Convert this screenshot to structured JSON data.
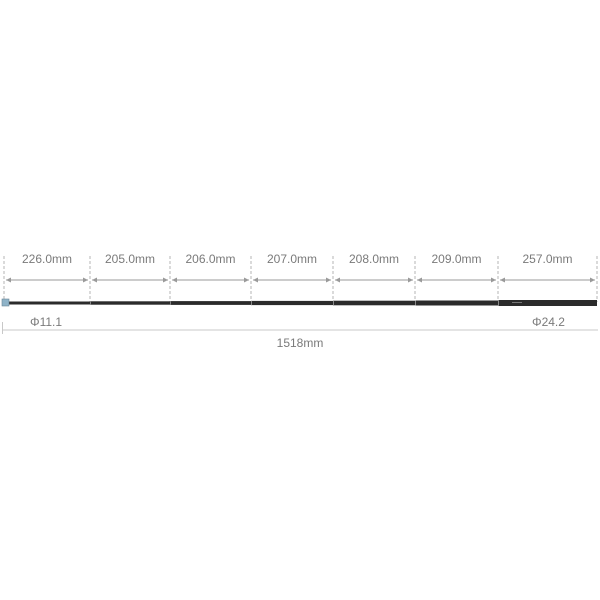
{
  "segments": [
    {
      "label": "226.0mm"
    },
    {
      "label": "205.0mm"
    },
    {
      "label": "206.0mm"
    },
    {
      "label": "207.0mm"
    },
    {
      "label": "208.0mm"
    },
    {
      "label": "209.0mm"
    },
    {
      "label": "257.0mm"
    }
  ],
  "diameter_small": "Φ11.1",
  "diameter_large": "Φ24.2",
  "total_length": "1518mm",
  "colors": {
    "pole": "#2b2b2b",
    "tip": "#8fb3c8",
    "dimension": "#9a9a9a",
    "text": "#7a7a7a"
  }
}
